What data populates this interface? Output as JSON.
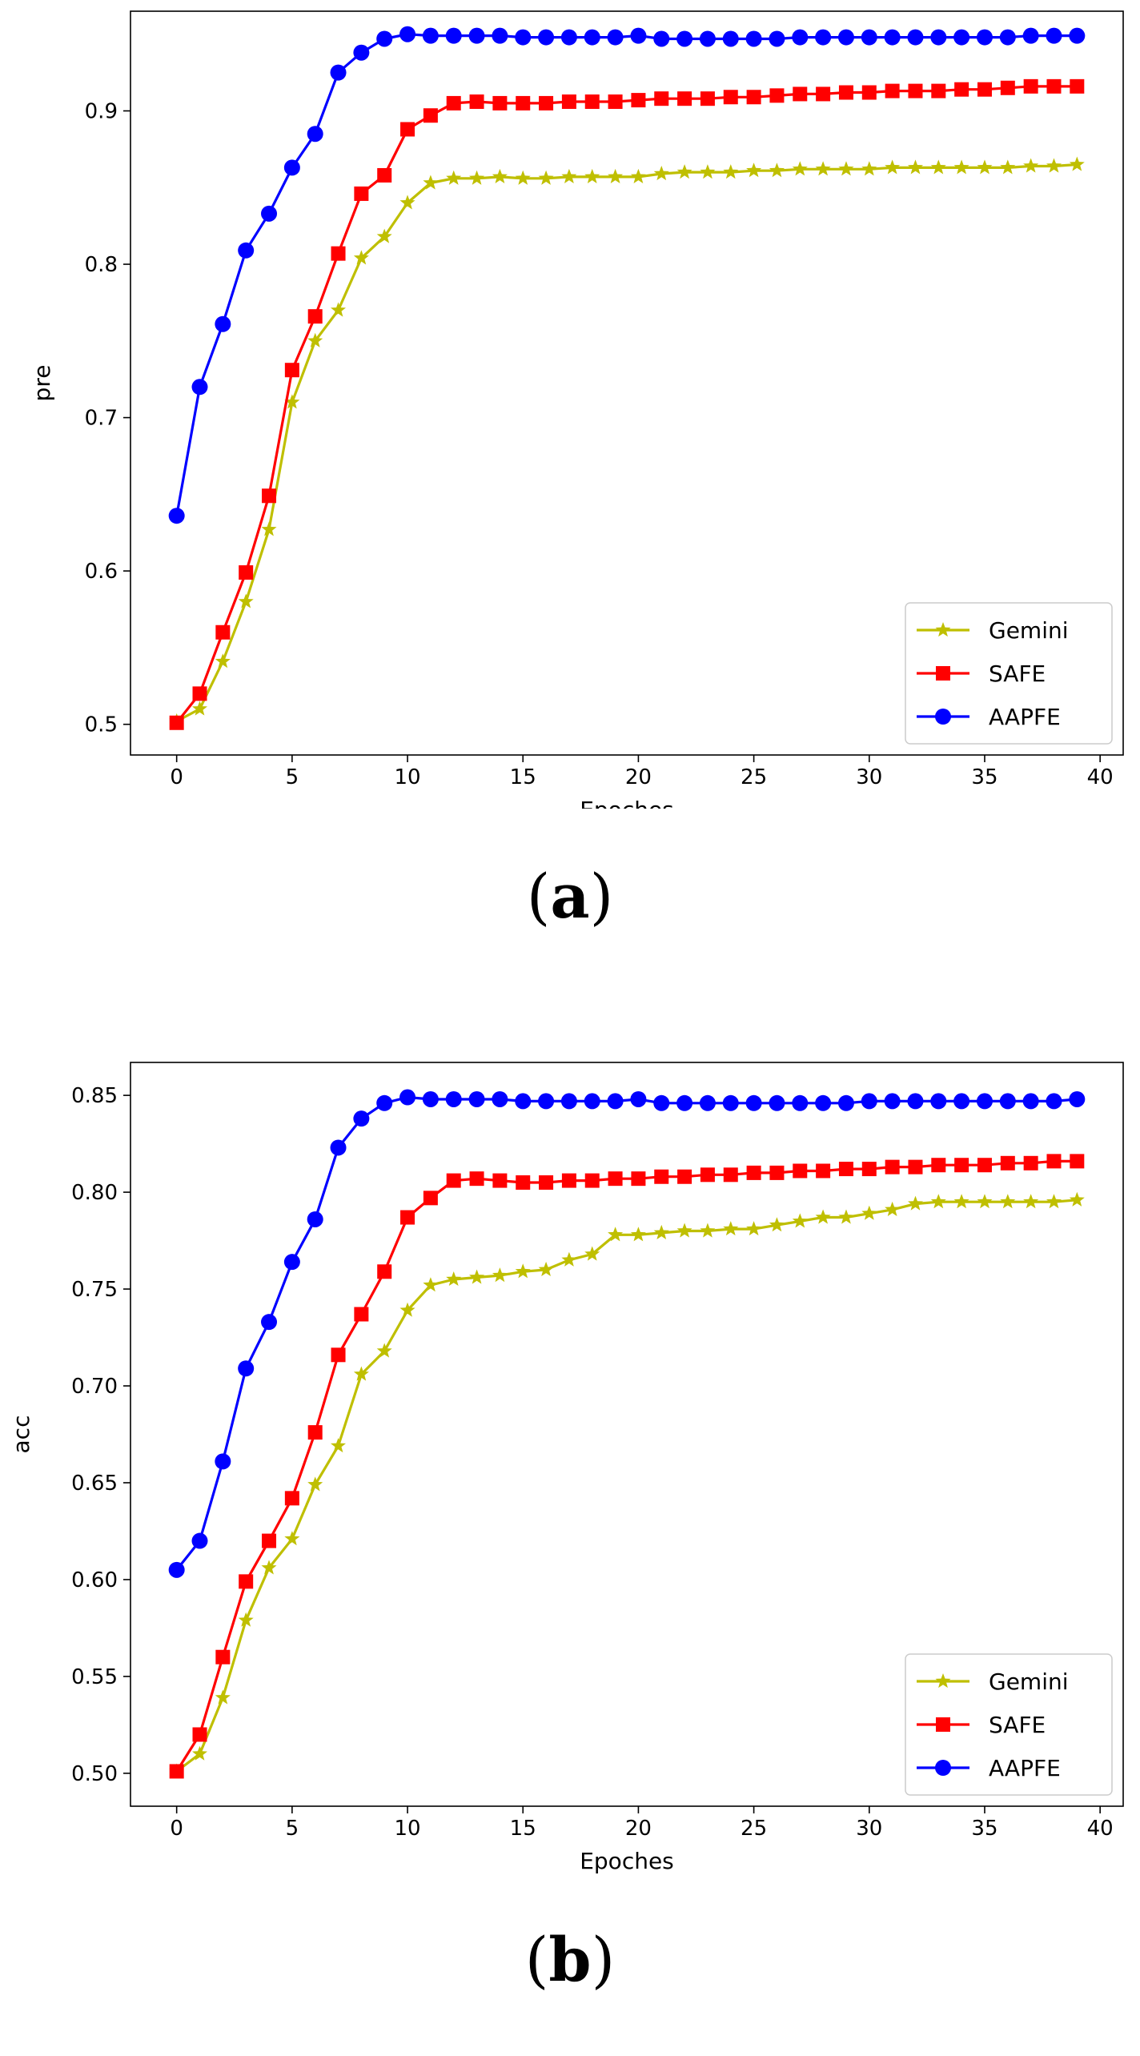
{
  "chart_data": [
    {
      "type": "line",
      "panel_label": "a",
      "xlabel": "Epoches",
      "ylabel": "pre",
      "xlim": [
        -2.0,
        41.0
      ],
      "ylim": [
        0.48,
        0.965
      ],
      "xticks": [
        0,
        5,
        10,
        15,
        20,
        25,
        30,
        35,
        40
      ],
      "yticks": [
        0.5,
        0.6,
        0.7,
        0.8,
        0.9
      ],
      "ytick_labels": [
        "0.5",
        "0.6",
        "0.7",
        "0.8",
        "0.9"
      ],
      "legend_position": "lower-right",
      "x": [
        0,
        1,
        2,
        3,
        4,
        5,
        6,
        7,
        8,
        9,
        10,
        11,
        12,
        13,
        14,
        15,
        16,
        17,
        18,
        19,
        20,
        21,
        22,
        23,
        24,
        25,
        26,
        27,
        28,
        29,
        30,
        31,
        32,
        33,
        34,
        35,
        36,
        37,
        38,
        39
      ],
      "series": [
        {
          "name": "Gemini",
          "color": "#bfbf00",
          "marker": "star",
          "values": [
            0.502,
            0.51,
            0.541,
            0.58,
            0.627,
            0.71,
            0.75,
            0.77,
            0.804,
            0.818,
            0.84,
            0.853,
            0.856,
            0.856,
            0.857,
            0.856,
            0.856,
            0.857,
            0.857,
            0.857,
            0.857,
            0.859,
            0.86,
            0.86,
            0.86,
            0.861,
            0.861,
            0.862,
            0.862,
            0.862,
            0.862,
            0.863,
            0.863,
            0.863,
            0.863,
            0.863,
            0.863,
            0.864,
            0.864,
            0.865
          ]
        },
        {
          "name": "SAFE",
          "color": "#ff0000",
          "marker": "square",
          "values": [
            0.501,
            0.52,
            0.56,
            0.599,
            0.649,
            0.731,
            0.766,
            0.807,
            0.846,
            0.858,
            0.888,
            0.897,
            0.905,
            0.906,
            0.905,
            0.905,
            0.905,
            0.906,
            0.906,
            0.906,
            0.907,
            0.908,
            0.908,
            0.908,
            0.909,
            0.909,
            0.91,
            0.911,
            0.911,
            0.912,
            0.912,
            0.913,
            0.913,
            0.913,
            0.914,
            0.914,
            0.915,
            0.916,
            0.916,
            0.916
          ]
        },
        {
          "name": "AAPFE",
          "color": "#0000ff",
          "marker": "circle",
          "values": [
            0.636,
            0.72,
            0.761,
            0.809,
            0.833,
            0.863,
            0.885,
            0.925,
            0.938,
            0.947,
            0.95,
            0.949,
            0.949,
            0.949,
            0.949,
            0.948,
            0.948,
            0.948,
            0.948,
            0.948,
            0.949,
            0.947,
            0.947,
            0.947,
            0.947,
            0.947,
            0.947,
            0.948,
            0.948,
            0.948,
            0.948,
            0.948,
            0.948,
            0.948,
            0.948,
            0.948,
            0.948,
            0.949,
            0.949,
            0.949
          ]
        }
      ]
    },
    {
      "type": "line",
      "panel_label": "b",
      "xlabel": "Epoches",
      "ylabel": "acc",
      "xlim": [
        -2.0,
        41.0
      ],
      "ylim": [
        0.483,
        0.867
      ],
      "xticks": [
        0,
        5,
        10,
        15,
        20,
        25,
        30,
        35,
        40
      ],
      "yticks": [
        0.5,
        0.55,
        0.6,
        0.65,
        0.7,
        0.75,
        0.8,
        0.85
      ],
      "ytick_labels": [
        "0.50",
        "0.55",
        "0.60",
        "0.65",
        "0.70",
        "0.75",
        "0.80",
        "0.85"
      ],
      "legend_position": "lower-right",
      "x": [
        0,
        1,
        2,
        3,
        4,
        5,
        6,
        7,
        8,
        9,
        10,
        11,
        12,
        13,
        14,
        15,
        16,
        17,
        18,
        19,
        20,
        21,
        22,
        23,
        24,
        25,
        26,
        27,
        28,
        29,
        30,
        31,
        32,
        33,
        34,
        35,
        36,
        37,
        38,
        39
      ],
      "series": [
        {
          "name": "Gemini",
          "color": "#bfbf00",
          "marker": "star",
          "values": [
            0.501,
            0.51,
            0.539,
            0.579,
            0.606,
            0.621,
            0.649,
            0.669,
            0.706,
            0.718,
            0.739,
            0.752,
            0.755,
            0.756,
            0.757,
            0.759,
            0.76,
            0.765,
            0.768,
            0.778,
            0.778,
            0.779,
            0.78,
            0.78,
            0.781,
            0.781,
            0.783,
            0.785,
            0.787,
            0.787,
            0.789,
            0.791,
            0.794,
            0.795,
            0.795,
            0.795,
            0.795,
            0.795,
            0.795,
            0.796
          ]
        },
        {
          "name": "SAFE",
          "color": "#ff0000",
          "marker": "square",
          "values": [
            0.501,
            0.52,
            0.56,
            0.599,
            0.62,
            0.642,
            0.676,
            0.716,
            0.737,
            0.759,
            0.787,
            0.797,
            0.806,
            0.807,
            0.806,
            0.805,
            0.805,
            0.806,
            0.806,
            0.807,
            0.807,
            0.808,
            0.808,
            0.809,
            0.809,
            0.81,
            0.81,
            0.811,
            0.811,
            0.812,
            0.812,
            0.813,
            0.813,
            0.814,
            0.814,
            0.814,
            0.815,
            0.815,
            0.816,
            0.816
          ]
        },
        {
          "name": "AAPFE",
          "color": "#0000ff",
          "marker": "circle",
          "values": [
            0.605,
            0.62,
            0.661,
            0.709,
            0.733,
            0.764,
            0.786,
            0.823,
            0.838,
            0.846,
            0.849,
            0.848,
            0.848,
            0.848,
            0.848,
            0.847,
            0.847,
            0.847,
            0.847,
            0.847,
            0.848,
            0.846,
            0.846,
            0.846,
            0.846,
            0.846,
            0.846,
            0.846,
            0.846,
            0.846,
            0.847,
            0.847,
            0.847,
            0.847,
            0.847,
            0.847,
            0.847,
            0.847,
            0.847,
            0.848
          ]
        }
      ]
    }
  ]
}
